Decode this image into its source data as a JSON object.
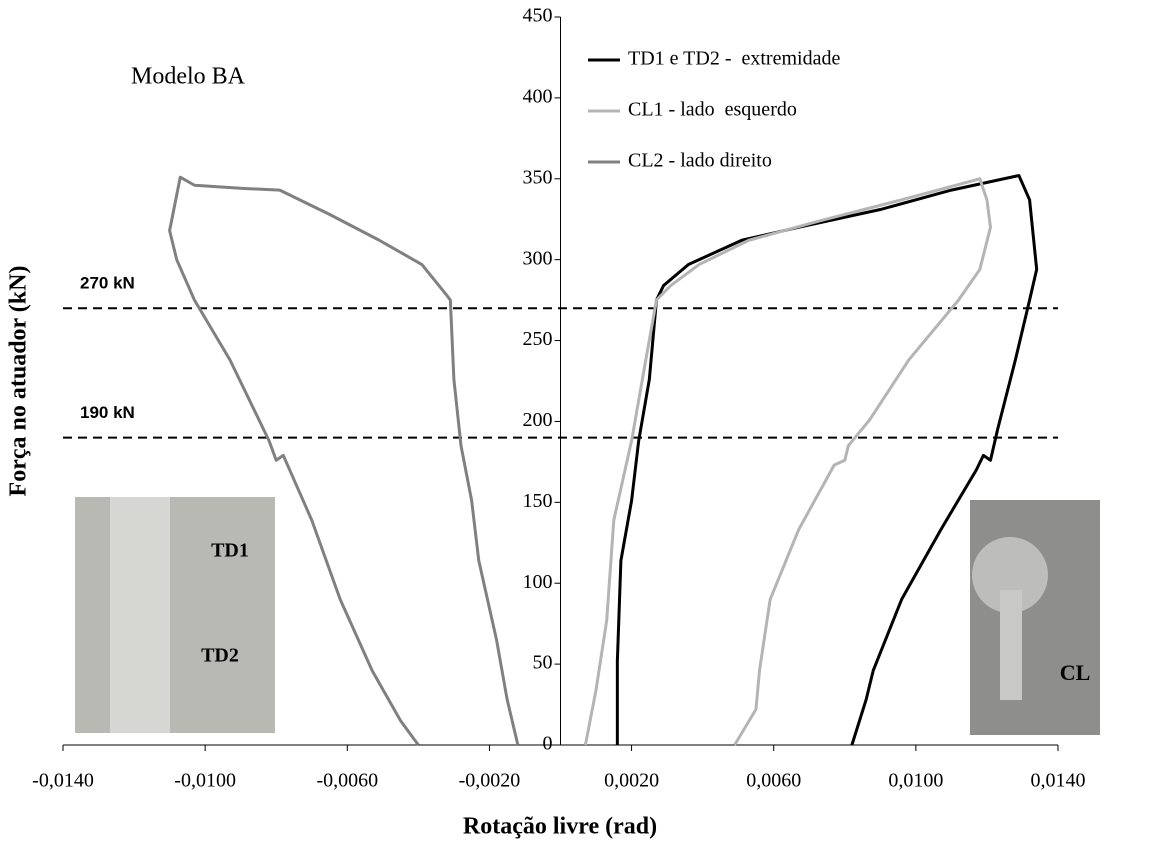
{
  "chart_data": {
    "type": "line",
    "x_label": "Rotação livre (rad)",
    "y_label": "Força no atuador (kN)",
    "annotation": "Modelo BA",
    "photo_labels": [
      "TD1",
      "TD2",
      "CL"
    ],
    "xlim": [
      -0.014,
      0.014
    ],
    "xticks": [
      {
        "value": -0.014,
        "label": "-0,0140"
      },
      {
        "value": -0.01,
        "label": "-0,0100"
      },
      {
        "value": -0.006,
        "label": "-0,0060"
      },
      {
        "value": -0.002,
        "label": "-0,0020"
      },
      {
        "value": 0.002,
        "label": "0,0020"
      },
      {
        "value": 0.006,
        "label": "0,0060"
      },
      {
        "value": 0.01,
        "label": "0,0100"
      },
      {
        "value": 0.014,
        "label": "0,0140"
      }
    ],
    "ylim": [
      0,
      450
    ],
    "yticks": [
      0,
      50,
      100,
      150,
      200,
      250,
      300,
      350,
      400,
      450
    ],
    "reference_lines": [
      {
        "value": 270,
        "label": "270 kN"
      },
      {
        "value": 190,
        "label": "190 kN"
      }
    ],
    "series": [
      {
        "name": "TD1 e TD2 -  extremidade",
        "color": "#000000",
        "x": [
          0.0016,
          0.0016,
          0.0017,
          0.002,
          0.0022,
          0.0025,
          0.0027,
          0.0029,
          0.0036,
          0.0051,
          0.0067,
          0.009,
          0.011,
          0.0129,
          0.0132,
          0.0134,
          0.0132,
          0.0128,
          0.0123,
          0.0121,
          0.0119,
          0.0117,
          0.0107,
          0.0096,
          0.0088,
          0.0086,
          0.0082
        ],
        "values": [
          0,
          52,
          114,
          151,
          188,
          226,
          275,
          284,
          297,
          312,
          320,
          331,
          343,
          352,
          337,
          294,
          275,
          238,
          195,
          176,
          179,
          170,
          133,
          90,
          46,
          28,
          0
        ]
      },
      {
        "name": "CL1 - lado  esquerdo",
        "color": "#b4b4b4",
        "x": [
          0.0007,
          0.001,
          0.0013,
          0.0015,
          0.002,
          0.0024,
          0.0027,
          0.0031,
          0.0039,
          0.0053,
          0.0073,
          0.0096,
          0.0118,
          0.012,
          0.0121,
          0.0118,
          0.0112,
          0.0098,
          0.0087,
          0.0081,
          0.008,
          0.0077,
          0.0067,
          0.0059,
          0.0056,
          0.0055,
          0.0049
        ],
        "values": [
          0,
          34,
          77,
          139,
          188,
          238,
          275,
          284,
          297,
          312,
          324,
          337,
          350,
          337,
          320,
          294,
          275,
          238,
          201,
          185,
          176,
          173,
          133,
          90,
          46,
          22,
          0
        ]
      },
      {
        "name": "CL2 - lado direito",
        "color": "#808080",
        "x": [
          -0.0012,
          -0.0015,
          -0.0018,
          -0.0023,
          -0.0025,
          -0.0028,
          -0.003,
          -0.0031,
          -0.0032,
          -0.0039,
          -0.0051,
          -0.0065,
          -0.0079,
          -0.0089,
          -0.0103,
          -0.0107,
          -0.011,
          -0.0108,
          -0.0103,
          -0.0093,
          -0.0082,
          -0.008,
          -0.0078,
          -0.007,
          -0.0062,
          -0.0053,
          -0.0045,
          -0.004
        ],
        "values": [
          0,
          28,
          65,
          114,
          151,
          185,
          226,
          275,
          278,
          297,
          312,
          328,
          343,
          344,
          346,
          351,
          318,
          300,
          275,
          238,
          188,
          176,
          179,
          139,
          90,
          46,
          15,
          0
        ]
      }
    ]
  }
}
